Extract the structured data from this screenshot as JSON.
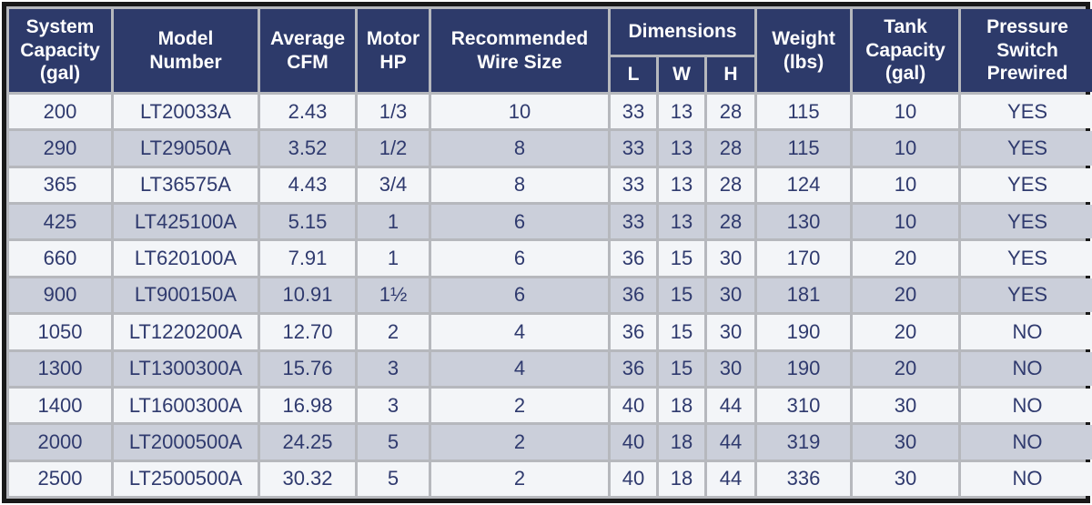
{
  "header": {
    "system_capacity": "System\nCapacity\n(gal)",
    "model_number": "Model\nNumber",
    "average_cfm": "Average\nCFM",
    "motor_hp": "Motor\nHP",
    "wire_size": "Recommended\nWire Size",
    "dimensions": "Dimensions",
    "dim_l": "L",
    "dim_w": "W",
    "dim_h": "H",
    "weight": "Weight\n(lbs)",
    "tank_capacity": "Tank\nCapacity\n(gal)",
    "pressure_switch": "Pressure\nSwitch\nPrewired"
  },
  "colors": {
    "header_bg": "#2d3a6a",
    "header_text": "#ffffff",
    "data_text": "#2f3a6e",
    "row_light": "#f3f5f8",
    "row_dark": "#cbcfda",
    "grid": "#b6b8bd",
    "outer_border": "#191919"
  },
  "chart_data": {
    "type": "table",
    "columns": [
      "System Capacity (gal)",
      "Model Number",
      "Average CFM",
      "Motor HP",
      "Recommended Wire Size",
      "Dimensions L",
      "Dimensions W",
      "Dimensions H",
      "Weight (lbs)",
      "Tank Capacity (gal)",
      "Pressure Switch Prewired"
    ],
    "rows": [
      [
        "200",
        "LT20033A",
        "2.43",
        "1/3",
        "10",
        "33",
        "13",
        "28",
        "115",
        "10",
        "YES"
      ],
      [
        "290",
        "LT29050A",
        "3.52",
        "1/2",
        "8",
        "33",
        "13",
        "28",
        "115",
        "10",
        "YES"
      ],
      [
        "365",
        "LT36575A",
        "4.43",
        "3/4",
        "8",
        "33",
        "13",
        "28",
        "124",
        "10",
        "YES"
      ],
      [
        "425",
        "LT425100A",
        "5.15",
        "1",
        "6",
        "33",
        "13",
        "28",
        "130",
        "10",
        "YES"
      ],
      [
        "660",
        "LT620100A",
        "7.91",
        "1",
        "6",
        "36",
        "15",
        "30",
        "170",
        "20",
        "YES"
      ],
      [
        "900",
        "LT900150A",
        "10.91",
        "1½",
        "6",
        "36",
        "15",
        "30",
        "181",
        "20",
        "YES"
      ],
      [
        "1050",
        "LT1220200A",
        "12.70",
        "2",
        "4",
        "36",
        "15",
        "30",
        "190",
        "20",
        "NO"
      ],
      [
        "1300",
        "LT1300300A",
        "15.76",
        "3",
        "4",
        "36",
        "15",
        "30",
        "190",
        "20",
        "NO"
      ],
      [
        "1400",
        "LT1600300A",
        "16.98",
        "3",
        "2",
        "40",
        "18",
        "44",
        "310",
        "30",
        "NO"
      ],
      [
        "2000",
        "LT2000500A",
        "24.25",
        "5",
        "2",
        "40",
        "18",
        "44",
        "319",
        "30",
        "NO"
      ],
      [
        "2500",
        "LT2500500A",
        "30.32",
        "5",
        "2",
        "40",
        "18",
        "44",
        "336",
        "30",
        "NO"
      ]
    ]
  }
}
